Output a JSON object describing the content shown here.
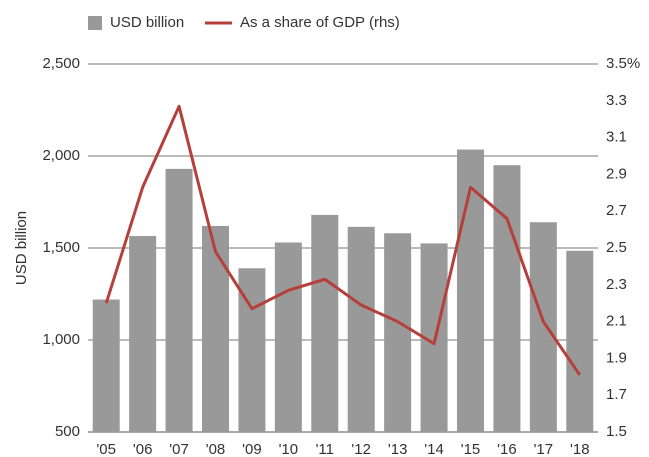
{
  "chart_data": {
    "type": "bar_line",
    "y_label": "USD billion",
    "categories": [
      "'05",
      "'06",
      "'07",
      "'08",
      "'09",
      "'10",
      "'11",
      "'12",
      "'13",
      "'14",
      "'15",
      "'16",
      "'17",
      "'18"
    ],
    "series": [
      {
        "name": "USD billion",
        "color": "#999999",
        "values": [
          1220,
          1565,
          1930,
          1620,
          1390,
          1530,
          1680,
          1615,
          1580,
          1525,
          2035,
          1950,
          1640,
          1485
        ]
      },
      {
        "name": "As a share of GDP (rhs)",
        "color": "#b5403b",
        "axis": "y2",
        "values": [
          2.2,
          2.83,
          3.27,
          2.48,
          2.17,
          2.27,
          2.33,
          2.19,
          2.1,
          1.98,
          2.83,
          2.66,
          2.1,
          1.81
        ]
      }
    ],
    "ylim": [
      500,
      2500
    ],
    "yticks": [
      {
        "value": 500,
        "label": "500"
      },
      {
        "value": 1000,
        "label": "1,000"
      },
      {
        "value": 1500,
        "label": "1,500"
      },
      {
        "value": 2000,
        "label": "2,000"
      },
      {
        "value": 2500,
        "label": "2,500"
      }
    ],
    "y2lim": [
      1.5,
      3.5
    ],
    "y2ticks": [
      1.5,
      1.7,
      1.9,
      2.1,
      2.3,
      2.5,
      2.7,
      2.9,
      3.1,
      3.3,
      {
        "value": 3.5,
        "label": "3.5%"
      }
    ],
    "grid": true,
    "legend": "top"
  }
}
